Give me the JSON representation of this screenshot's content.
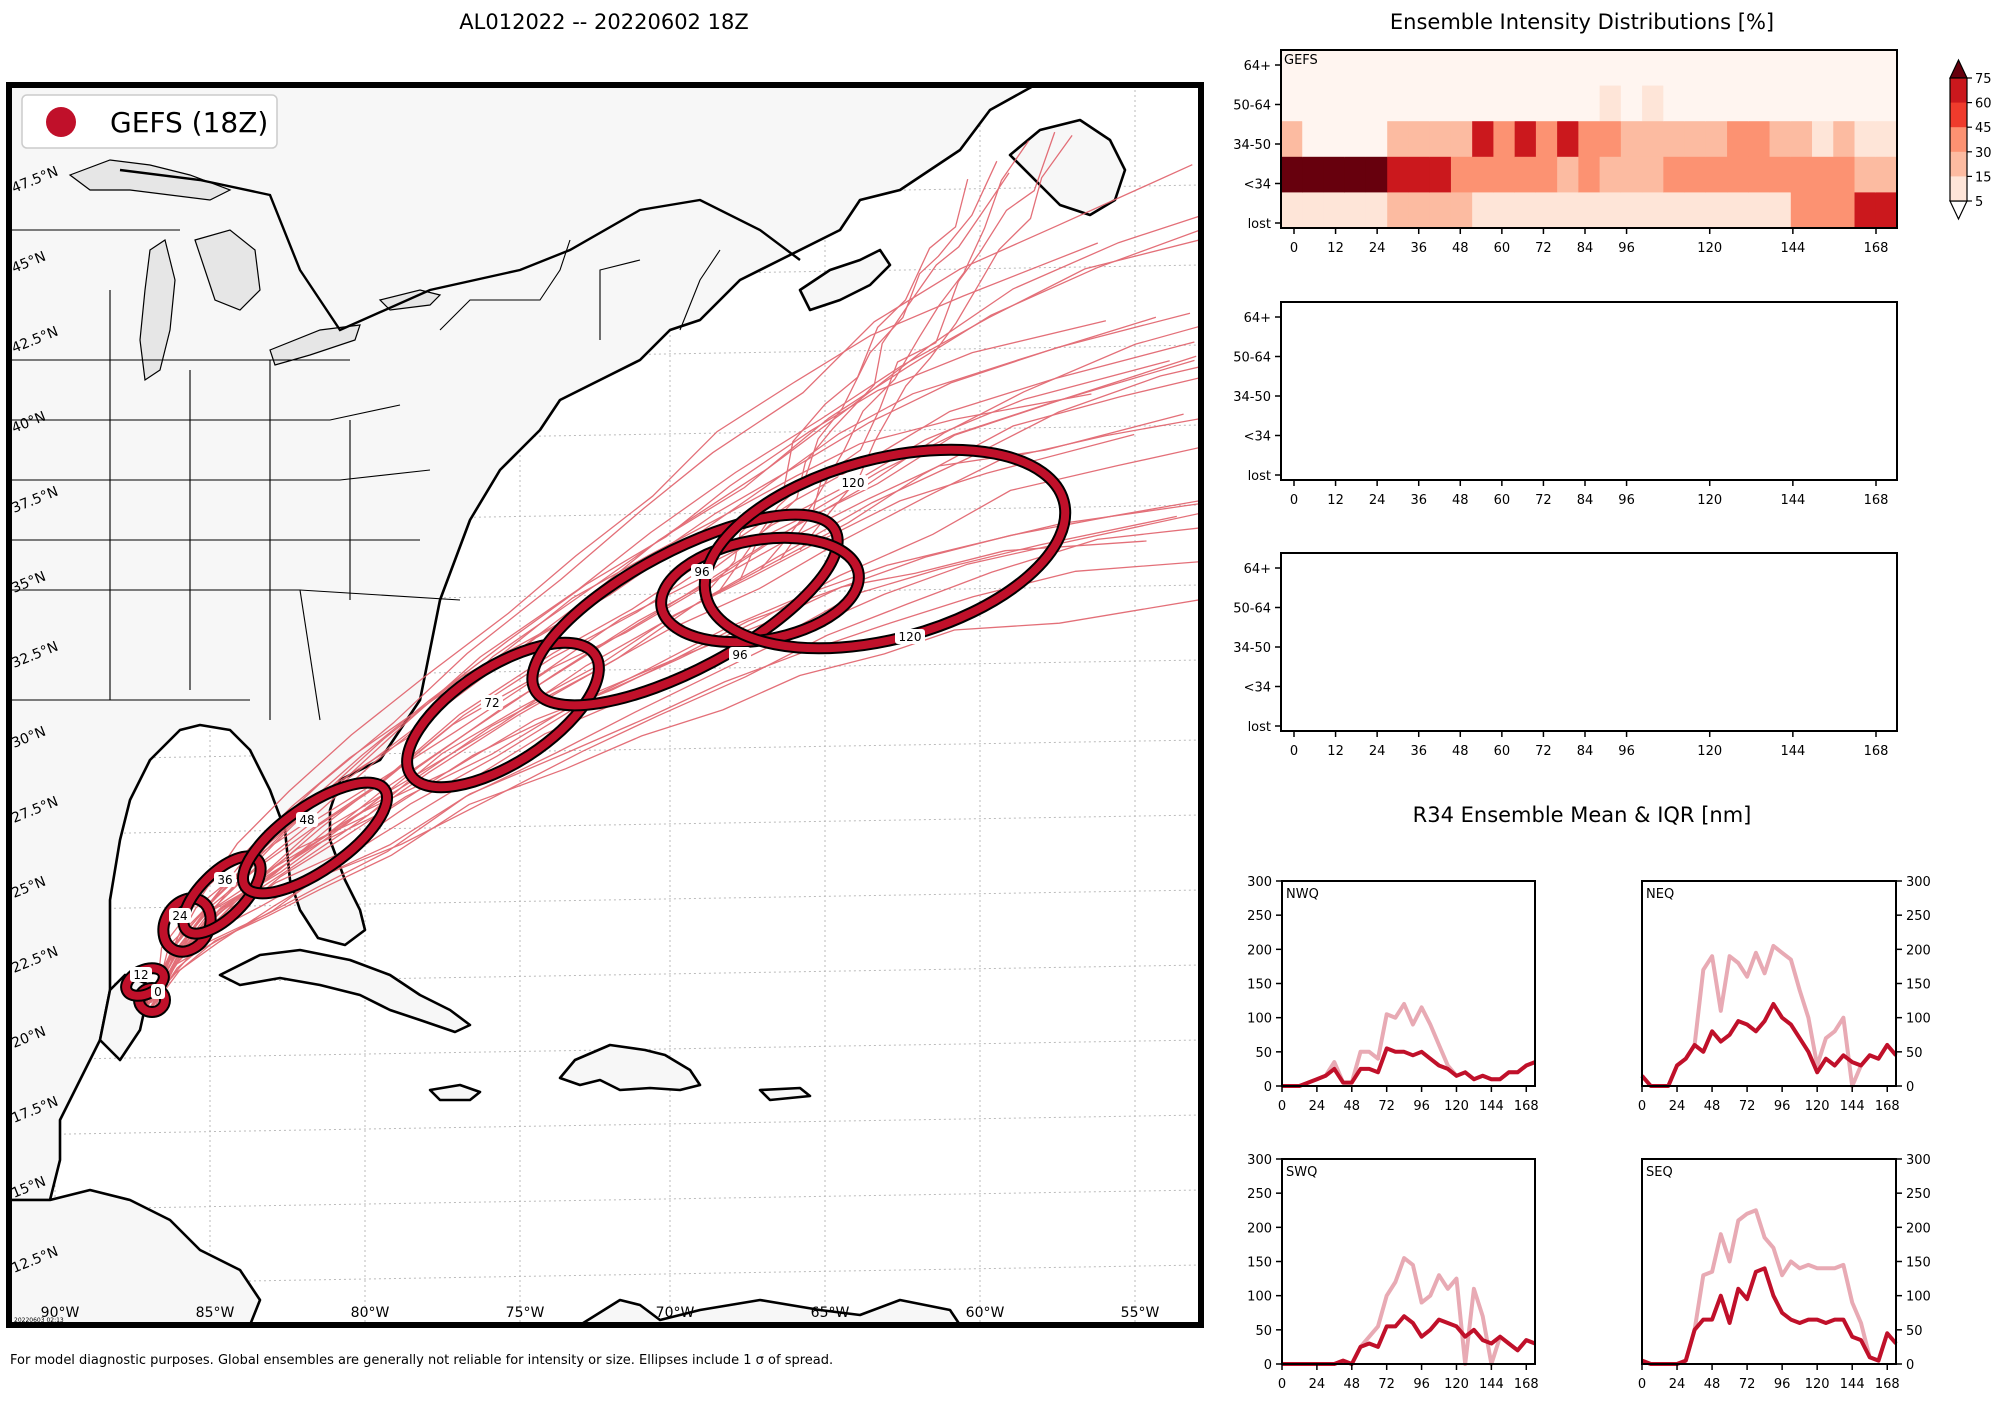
{
  "header": {
    "map_title": "AL012022 -- 20220602 18Z",
    "intensity_title": "Ensemble Intensity Distributions [%]",
    "r34_title": "R34 Ensemble Mean & IQR [nm]"
  },
  "footer": {
    "note": "For model diagnostic purposes. Global ensembles are generally not reliable for intensity or size. Ellipses include 1 σ of spread.",
    "stamp": "20220603 02:13"
  },
  "colors": {
    "ellipse": "#c0102a",
    "track": "#e0606a",
    "land": "#f7f7f7",
    "iqr": "#e8aab4"
  },
  "map": {
    "legend_label": "GEFS (18Z)",
    "lon_labels": [
      "90°W",
      "85°W",
      "80°W",
      "75°W",
      "70°W",
      "65°W",
      "60°W",
      "55°W"
    ],
    "lat_labels": [
      "47.5°N",
      "45°N",
      "42.5°N",
      "40°N",
      "37.5°N",
      "35°N",
      "32.5°N",
      "30°N",
      "27.5°N",
      "25°N",
      "22.5°N",
      "20°N",
      "17.5°N",
      "15°N",
      "12.5°N"
    ],
    "ellipse_labels": [
      "0",
      "12",
      "24",
      "36",
      "48",
      "72",
      "96",
      "96",
      "120",
      "120"
    ]
  },
  "chart_data": [
    {
      "type": "heatmap",
      "label": "GEFS",
      "x_ticks": [
        0,
        12,
        24,
        36,
        48,
        60,
        72,
        84,
        96,
        120,
        144,
        168
      ],
      "xlim": [
        0,
        174
      ],
      "y_categories": [
        "64+",
        "50-64",
        "34-50",
        "<34",
        "lost"
      ],
      "colorbar_ticks": [
        5,
        15,
        30,
        45,
        60,
        75
      ],
      "colorbar_colors": [
        "#fee5d8",
        "#fcbba1",
        "#fc9272",
        "#ef3b2c",
        "#cb181d",
        "#67000d"
      ],
      "columns": [
        {
          "x0": 0,
          "x1": 6,
          "values": [
            0,
            0,
            20,
            80,
            5
          ]
        },
        {
          "x0": 6,
          "x1": 12,
          "values": [
            0,
            0,
            0,
            80,
            5
          ]
        },
        {
          "x0": 12,
          "x1": 18,
          "values": [
            0,
            0,
            0,
            80,
            5
          ]
        },
        {
          "x0": 18,
          "x1": 24,
          "values": [
            0,
            0,
            0,
            80,
            5
          ]
        },
        {
          "x0": 24,
          "x1": 30,
          "values": [
            0,
            0,
            0,
            80,
            5
          ]
        },
        {
          "x0": 30,
          "x1": 36,
          "values": [
            0,
            0,
            20,
            60,
            20
          ]
        },
        {
          "x0": 36,
          "x1": 42,
          "values": [
            0,
            0,
            20,
            60,
            20
          ]
        },
        {
          "x0": 42,
          "x1": 48,
          "values": [
            0,
            0,
            20,
            60,
            20
          ]
        },
        {
          "x0": 48,
          "x1": 54,
          "values": [
            0,
            0,
            20,
            40,
            20
          ]
        },
        {
          "x0": 54,
          "x1": 60,
          "values": [
            0,
            0,
            60,
            40,
            5
          ]
        },
        {
          "x0": 60,
          "x1": 66,
          "values": [
            0,
            0,
            40,
            40,
            5
          ]
        },
        {
          "x0": 66,
          "x1": 72,
          "values": [
            0,
            0,
            60,
            40,
            5
          ]
        },
        {
          "x0": 72,
          "x1": 78,
          "values": [
            0,
            0,
            40,
            40,
            5
          ]
        },
        {
          "x0": 78,
          "x1": 84,
          "values": [
            0,
            0,
            60,
            20,
            5
          ]
        },
        {
          "x0": 84,
          "x1": 90,
          "values": [
            0,
            0,
            40,
            40,
            5
          ]
        },
        {
          "x0": 90,
          "x1": 96,
          "values": [
            0,
            10,
            40,
            20,
            5
          ]
        },
        {
          "x0": 96,
          "x1": 102,
          "values": [
            0,
            0,
            20,
            20,
            5
          ]
        },
        {
          "x0": 102,
          "x1": 108,
          "values": [
            0,
            10,
            20,
            20,
            5
          ]
        },
        {
          "x0": 108,
          "x1": 114,
          "values": [
            0,
            0,
            20,
            40,
            5
          ]
        },
        {
          "x0": 114,
          "x1": 120,
          "values": [
            0,
            0,
            20,
            40,
            5
          ]
        },
        {
          "x0": 120,
          "x1": 126,
          "values": [
            0,
            0,
            20,
            40,
            5
          ]
        },
        {
          "x0": 126,
          "x1": 132,
          "values": [
            0,
            0,
            40,
            40,
            5
          ]
        },
        {
          "x0": 132,
          "x1": 138,
          "values": [
            0,
            0,
            40,
            40,
            5
          ]
        },
        {
          "x0": 138,
          "x1": 144,
          "values": [
            0,
            0,
            20,
            40,
            5
          ]
        },
        {
          "x0": 144,
          "x1": 150,
          "values": [
            0,
            0,
            20,
            40,
            40
          ]
        },
        {
          "x0": 150,
          "x1": 156,
          "values": [
            0,
            0,
            10,
            40,
            40
          ]
        },
        {
          "x0": 156,
          "x1": 162,
          "values": [
            0,
            0,
            20,
            40,
            40
          ]
        },
        {
          "x0": 162,
          "x1": 168,
          "values": [
            0,
            0,
            10,
            20,
            60
          ]
        },
        {
          "x0": 168,
          "x1": 174,
          "values": [
            0,
            0,
            10,
            20,
            60
          ]
        }
      ]
    },
    {
      "type": "heatmap",
      "label": "",
      "x_ticks": [
        0,
        12,
        24,
        36,
        48,
        60,
        72,
        84,
        96,
        120,
        144,
        168
      ],
      "y_categories": [
        "64+",
        "50-64",
        "34-50",
        "<34",
        "lost"
      ],
      "columns": []
    },
    {
      "type": "heatmap",
      "label": "",
      "x_ticks": [
        0,
        12,
        24,
        36,
        48,
        60,
        72,
        84,
        96,
        120,
        144,
        168
      ],
      "y_categories": [
        "64+",
        "50-64",
        "34-50",
        "<34",
        "lost"
      ],
      "columns": []
    },
    {
      "type": "line",
      "label": "NWQ",
      "x": [
        0,
        6,
        12,
        18,
        24,
        30,
        36,
        42,
        48,
        54,
        60,
        66,
        72,
        78,
        84,
        90,
        96,
        102,
        108,
        114,
        120,
        126,
        132,
        138,
        144,
        150,
        156,
        162,
        168,
        174
      ],
      "y_ticks": [
        0,
        50,
        100,
        150,
        200,
        250,
        300
      ],
      "x_ticks": [
        0,
        24,
        48,
        72,
        96,
        120,
        144,
        168
      ],
      "ylim": [
        0,
        300
      ],
      "series": [
        {
          "values": [
            0,
            0,
            0,
            5,
            10,
            15,
            25,
            5,
            5,
            25,
            25,
            20,
            55,
            50,
            50,
            45,
            50,
            40,
            30,
            25,
            15,
            20,
            10,
            15,
            10,
            10,
            20,
            20,
            30,
            35
          ]
        },
        {
          "values": [
            0,
            0,
            0,
            5,
            10,
            15,
            35,
            5,
            5,
            50,
            50,
            40,
            105,
            100,
            120,
            90,
            115,
            90,
            60,
            30,
            15,
            20,
            10,
            15,
            10,
            10,
            20,
            20,
            30,
            35
          ]
        }
      ]
    },
    {
      "type": "line",
      "label": "NEQ",
      "x": [
        0,
        6,
        12,
        18,
        24,
        30,
        36,
        42,
        48,
        54,
        60,
        66,
        72,
        78,
        84,
        90,
        96,
        102,
        108,
        114,
        120,
        126,
        132,
        138,
        144,
        150,
        156,
        162,
        168,
        174
      ],
      "y_ticks": [
        0,
        50,
        100,
        150,
        200,
        250,
        300
      ],
      "x_ticks": [
        0,
        24,
        48,
        72,
        96,
        120,
        144,
        168
      ],
      "ylim": [
        0,
        300
      ],
      "series": [
        {
          "values": [
            15,
            0,
            0,
            0,
            30,
            40,
            60,
            50,
            80,
            65,
            75,
            95,
            90,
            80,
            95,
            120,
            100,
            90,
            70,
            50,
            20,
            40,
            30,
            45,
            35,
            30,
            45,
            40,
            60,
            45
          ]
        },
        {
          "values": [
            15,
            0,
            0,
            0,
            30,
            40,
            60,
            170,
            190,
            110,
            190,
            180,
            160,
            195,
            165,
            205,
            195,
            185,
            140,
            100,
            30,
            70,
            80,
            100,
            0,
            30,
            45,
            40,
            60,
            45
          ]
        }
      ]
    },
    {
      "type": "line",
      "label": "SWQ",
      "x": [
        0,
        6,
        12,
        18,
        24,
        30,
        36,
        42,
        48,
        54,
        60,
        66,
        72,
        78,
        84,
        90,
        96,
        102,
        108,
        114,
        120,
        126,
        132,
        138,
        144,
        150,
        156,
        162,
        168,
        174
      ],
      "y_ticks": [
        0,
        50,
        100,
        150,
        200,
        250,
        300
      ],
      "x_ticks": [
        0,
        24,
        48,
        72,
        96,
        120,
        144,
        168
      ],
      "ylim": [
        0,
        300
      ],
      "series": [
        {
          "values": [
            0,
            0,
            0,
            0,
            0,
            0,
            0,
            5,
            0,
            25,
            30,
            25,
            55,
            55,
            70,
            60,
            40,
            50,
            65,
            60,
            55,
            40,
            50,
            35,
            30,
            40,
            30,
            20,
            35,
            30
          ]
        },
        {
          "values": [
            0,
            0,
            0,
            0,
            0,
            0,
            0,
            5,
            0,
            25,
            40,
            55,
            100,
            120,
            155,
            145,
            90,
            100,
            130,
            110,
            125,
            0,
            110,
            70,
            0,
            40,
            30,
            20,
            35,
            30
          ]
        }
      ]
    },
    {
      "type": "line",
      "label": "SEQ",
      "x": [
        0,
        6,
        12,
        18,
        24,
        30,
        36,
        42,
        48,
        54,
        60,
        66,
        72,
        78,
        84,
        90,
        96,
        102,
        108,
        114,
        120,
        126,
        132,
        138,
        144,
        150,
        156,
        162,
        168,
        174
      ],
      "y_ticks": [
        0,
        50,
        100,
        150,
        200,
        250,
        300
      ],
      "x_ticks": [
        0,
        24,
        48,
        72,
        96,
        120,
        144,
        168
      ],
      "ylim": [
        0,
        300
      ],
      "series": [
        {
          "values": [
            5,
            0,
            0,
            0,
            0,
            5,
            50,
            65,
            65,
            100,
            60,
            110,
            95,
            135,
            140,
            100,
            75,
            65,
            60,
            65,
            65,
            60,
            65,
            65,
            40,
            35,
            10,
            5,
            45,
            30
          ]
        },
        {
          "values": [
            5,
            0,
            0,
            0,
            0,
            5,
            50,
            130,
            135,
            190,
            150,
            210,
            220,
            225,
            185,
            170,
            130,
            150,
            140,
            145,
            140,
            140,
            140,
            145,
            90,
            60,
            10,
            5,
            45,
            30
          ]
        }
      ]
    }
  ]
}
